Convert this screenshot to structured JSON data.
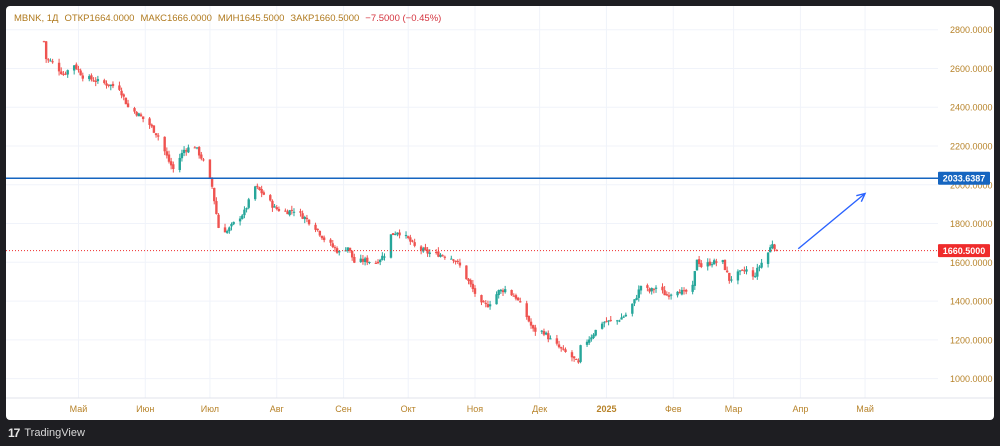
{
  "header": {
    "symbol": "MBNK, 1Д",
    "open": "ОТКР1664.0000",
    "high": "МАКС1666.0000",
    "low": "МИН1645.5000",
    "close": "ЗАКР1660.5000",
    "change": "−7.5000 (−0.45%)"
  },
  "footer": {
    "brand": "TradingView",
    "logo": "17"
  },
  "colors": {
    "up": "#26a69a",
    "down": "#ef5350",
    "hline": "#1565c0",
    "last_price": "#ef2b2b",
    "arrow": "#2962ff",
    "axis_text": "#b7832a"
  },
  "chart_data": {
    "type": "candlestick",
    "ylim": [
      900,
      2850
    ],
    "yticks": [
      1000,
      1200,
      1400,
      1600,
      1800,
      2000,
      2200,
      2400,
      2600,
      2800
    ],
    "ytick_labels": [
      "1000.0000",
      "1200.0000",
      "1400.0000",
      "1600.0000",
      "1800.0000",
      "2000.0000",
      "2200.0000",
      "2400.0000",
      "2600.0000",
      "2800.0000"
    ],
    "xticks": [
      {
        "label": "Май",
        "date": "2024-05-01"
      },
      {
        "label": "Июн",
        "date": "2024-06-01"
      },
      {
        "label": "Июл",
        "date": "2024-07-01"
      },
      {
        "label": "Авг",
        "date": "2024-08-01"
      },
      {
        "label": "Сен",
        "date": "2024-09-01"
      },
      {
        "label": "Окт",
        "date": "2024-10-01"
      },
      {
        "label": "Ноя",
        "date": "2024-11-01"
      },
      {
        "label": "Дек",
        "date": "2024-12-01"
      },
      {
        "label": "2025",
        "date": "2025-01-01",
        "bold": true
      },
      {
        "label": "Фев",
        "date": "2025-02-01"
      },
      {
        "label": "Мар",
        "date": "2025-03-01"
      },
      {
        "label": "Апр",
        "date": "2025-04-01"
      },
      {
        "label": "Май",
        "date": "2025-05-01"
      }
    ],
    "horizontal_line": {
      "value": 2033.6387,
      "label": "2033.6387"
    },
    "last_price": {
      "value": 1660.5,
      "label": "1660.5000"
    },
    "annotation_arrow": {
      "from": [
        "2025-03-31",
        1670
      ],
      "to": [
        "2025-05-01",
        1955
      ]
    },
    "anchors": [
      [
        "2024-04-15",
        2740
      ],
      [
        "2024-04-16",
        2650
      ],
      [
        "2024-04-19",
        2630
      ],
      [
        "2024-04-24",
        2570
      ],
      [
        "2024-04-29",
        2620
      ],
      [
        "2024-05-03",
        2560
      ],
      [
        "2024-05-08",
        2540
      ],
      [
        "2024-05-14",
        2520
      ],
      [
        "2024-05-20",
        2500
      ],
      [
        "2024-05-24",
        2400
      ],
      [
        "2024-05-28",
        2370
      ],
      [
        "2024-06-03",
        2310
      ],
      [
        "2024-06-07",
        2250
      ],
      [
        "2024-06-12",
        2120
      ],
      [
        "2024-06-14",
        2080
      ],
      [
        "2024-06-19",
        2180
      ],
      [
        "2024-06-24",
        2200
      ],
      [
        "2024-06-28",
        2120
      ],
      [
        "2024-07-02",
        1990
      ],
      [
        "2024-07-05",
        1780
      ],
      [
        "2024-07-09",
        1760
      ],
      [
        "2024-07-12",
        1800
      ],
      [
        "2024-07-17",
        1860
      ],
      [
        "2024-07-22",
        1990
      ],
      [
        "2024-07-26",
        1950
      ],
      [
        "2024-07-31",
        1880
      ],
      [
        "2024-08-05",
        1860
      ],
      [
        "2024-08-09",
        1870
      ],
      [
        "2024-08-14",
        1830
      ],
      [
        "2024-08-19",
        1780
      ],
      [
        "2024-08-23",
        1720
      ],
      [
        "2024-08-27",
        1680
      ],
      [
        "2024-08-30",
        1650
      ],
      [
        "2024-09-03",
        1680
      ],
      [
        "2024-09-06",
        1600
      ],
      [
        "2024-09-11",
        1610
      ],
      [
        "2024-09-16",
        1600
      ],
      [
        "2024-09-20",
        1640
      ],
      [
        "2024-09-23",
        1740
      ],
      [
        "2024-09-26",
        1760
      ],
      [
        "2024-10-01",
        1720
      ],
      [
        "2024-10-04",
        1680
      ],
      [
        "2024-10-10",
        1650
      ],
      [
        "2024-10-16",
        1640
      ],
      [
        "2024-10-22",
        1620
      ],
      [
        "2024-10-25",
        1580
      ],
      [
        "2024-10-30",
        1480
      ],
      [
        "2024-11-04",
        1380
      ],
      [
        "2024-11-07",
        1380
      ],
      [
        "2024-11-12",
        1450
      ],
      [
        "2024-11-15",
        1460
      ],
      [
        "2024-11-20",
        1420
      ],
      [
        "2024-11-25",
        1320
      ],
      [
        "2024-11-28",
        1250
      ],
      [
        "2024-12-03",
        1240
      ],
      [
        "2024-12-06",
        1200
      ],
      [
        "2024-12-11",
        1150
      ],
      [
        "2024-12-16",
        1110
      ],
      [
        "2024-12-19",
        1075
      ],
      [
        "2024-12-20",
        1160
      ],
      [
        "2024-12-25",
        1220
      ],
      [
        "2024-12-30",
        1290
      ],
      [
        "2025-01-06",
        1300
      ],
      [
        "2025-01-10",
        1330
      ],
      [
        "2025-01-14",
        1400
      ],
      [
        "2025-01-17",
        1480
      ],
      [
        "2025-01-21",
        1450
      ],
      [
        "2025-01-24",
        1470
      ],
      [
        "2025-01-29",
        1430
      ],
      [
        "2025-02-03",
        1460
      ],
      [
        "2025-02-06",
        1440
      ],
      [
        "2025-02-10",
        1470
      ],
      [
        "2025-02-12",
        1620
      ],
      [
        "2025-02-14",
        1580
      ],
      [
        "2025-02-19",
        1600
      ],
      [
        "2025-02-24",
        1600
      ],
      [
        "2025-02-27",
        1510
      ],
      [
        "2025-03-03",
        1540
      ],
      [
        "2025-03-07",
        1560
      ],
      [
        "2025-03-10",
        1520
      ],
      [
        "2025-03-13",
        1580
      ],
      [
        "2025-03-17",
        1650
      ],
      [
        "2025-03-19",
        1700
      ],
      [
        "2025-03-21",
        1661
      ]
    ]
  }
}
